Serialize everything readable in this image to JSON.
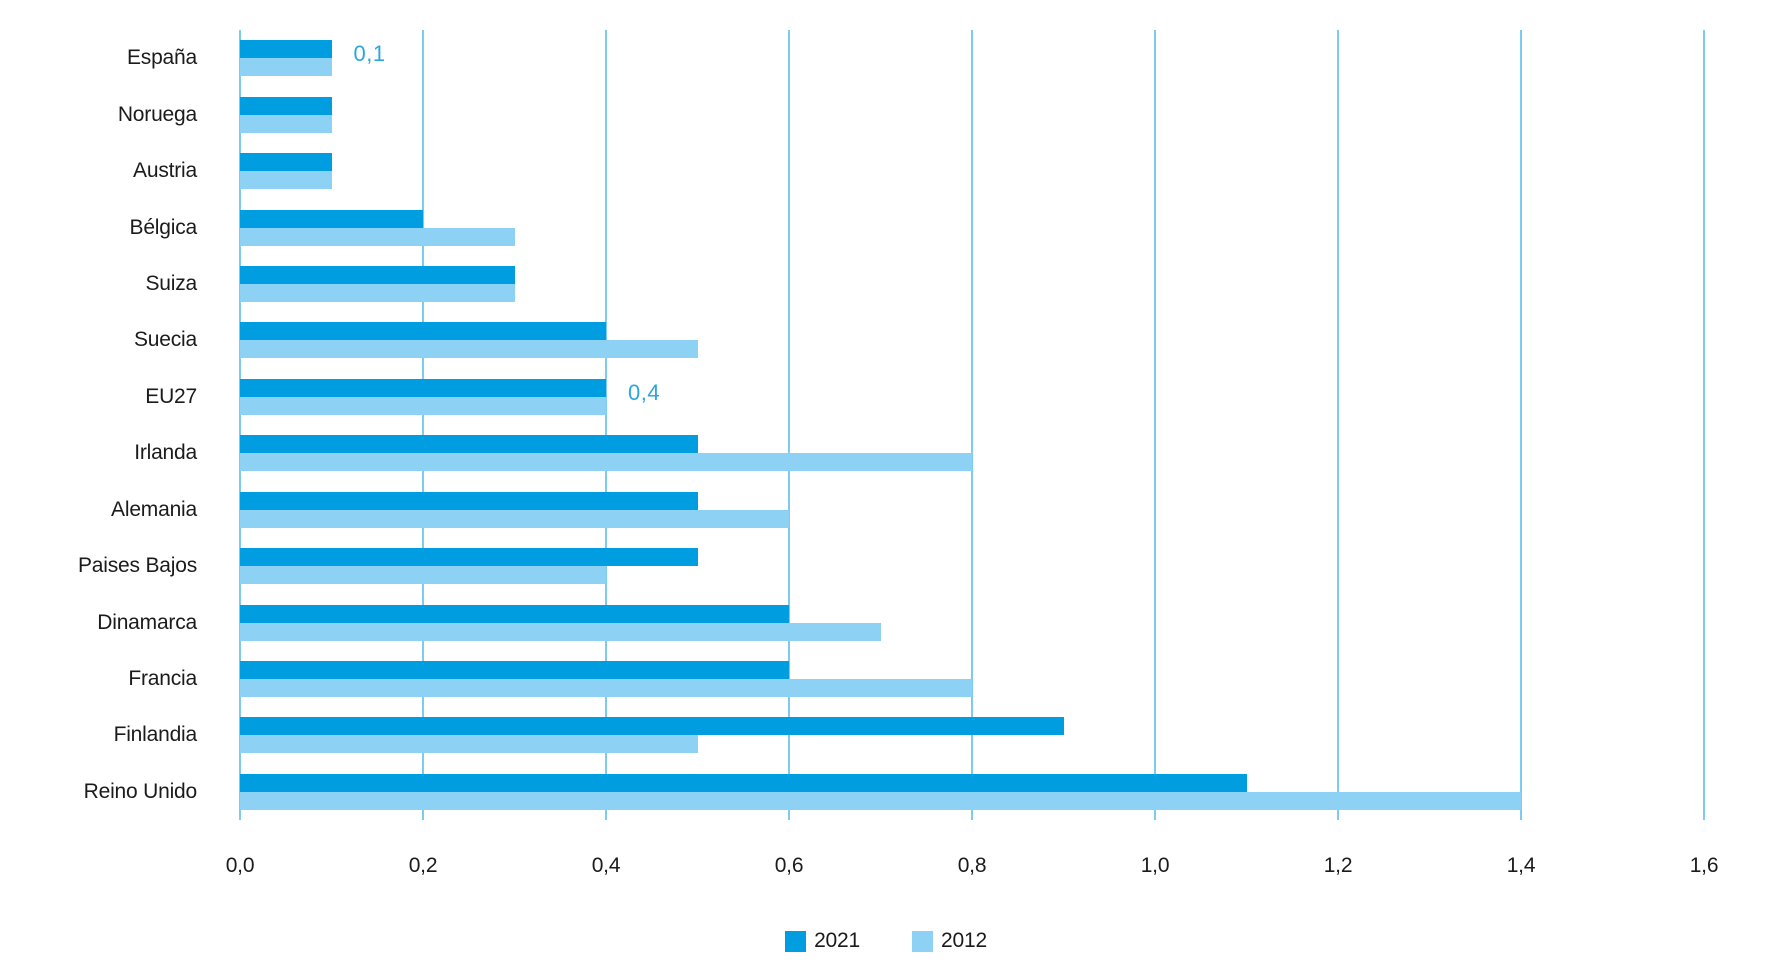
{
  "chart_data": {
    "type": "bar",
    "orientation": "horizontal",
    "title": "",
    "xlabel": "",
    "ylabel": "",
    "categories": [
      "España",
      "Noruega",
      "Austria",
      "Bélgica",
      "Suiza",
      "Suecia",
      "EU27",
      "Irlanda",
      "Alemania",
      "Paises Bajos",
      "Dinamarca",
      "Francia",
      "Finlandia",
      "Reino Unido"
    ],
    "series": [
      {
        "name": "2021",
        "color": "#009EE0",
        "values": [
          0.1,
          0.1,
          0.1,
          0.2,
          0.3,
          0.4,
          0.4,
          0.5,
          0.5,
          0.5,
          0.6,
          0.6,
          0.9,
          1.1
        ]
      },
      {
        "name": "2012",
        "color": "#8DD2F4",
        "values": [
          0.1,
          0.1,
          0.1,
          0.3,
          0.3,
          0.5,
          0.4,
          0.8,
          0.6,
          0.4,
          0.7,
          0.8,
          0.5,
          1.4
        ]
      }
    ],
    "xlim": [
      0,
      1.6
    ],
    "x_ticks": [
      "0,0",
      "0,2",
      "0,4",
      "0,6",
      "0,8",
      "1,0",
      "1,2",
      "1,4",
      "1,6"
    ],
    "x_tick_values": [
      0,
      0.2,
      0.4,
      0.6,
      0.8,
      1.0,
      1.2,
      1.4,
      1.6
    ],
    "grid": true,
    "legend_position": "bottom-center",
    "annotations": [
      {
        "category": "España",
        "text": "0,1",
        "value": 0.1
      },
      {
        "category": "EU27",
        "text": "0,4",
        "value": 0.4
      }
    ]
  },
  "colors": {
    "series_2021": "#009EE0",
    "series_2012": "#8DD2F4",
    "gridline": "#7CCBF0",
    "annotation_text": "#2AA7DF",
    "label_text": "#1b1b1b",
    "background": "#FFFFFF"
  }
}
